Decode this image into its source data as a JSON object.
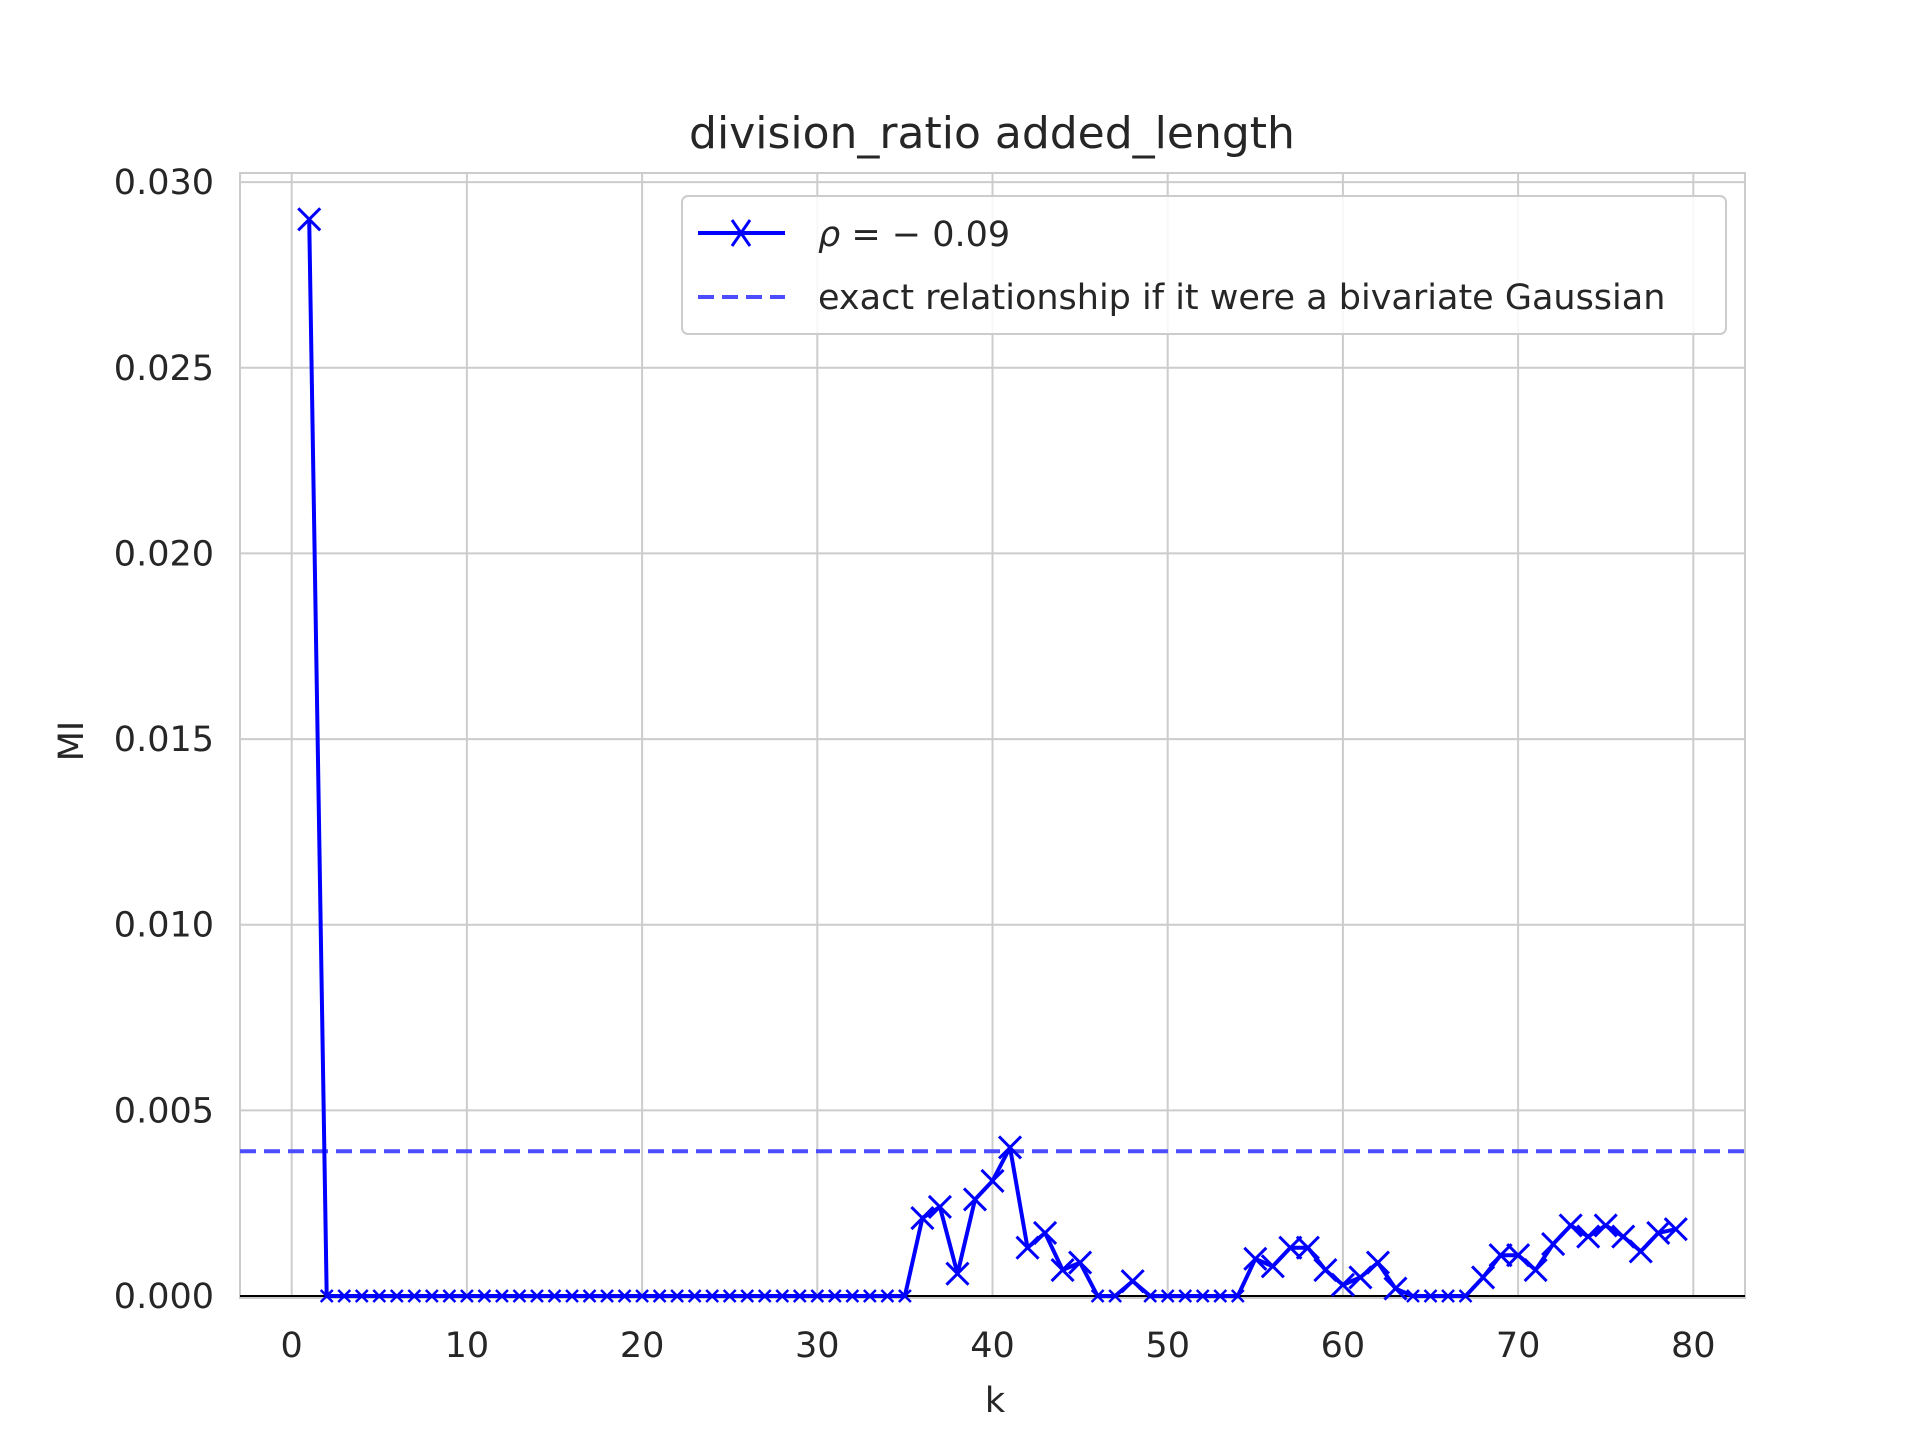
{
  "chart_data": {
    "type": "line",
    "title": "division_ratio added_length",
    "xlabel": "k",
    "ylabel": "MI",
    "xlim": [
      -2.95,
      82.95
    ],
    "ylim": [
      0.0,
      0.0303
    ],
    "xticks": [
      0,
      10,
      20,
      30,
      40,
      50,
      60,
      70,
      80
    ],
    "xtick_labels": [
      "0",
      "10",
      "20",
      "30",
      "40",
      "50",
      "60",
      "70",
      "80"
    ],
    "yticks": [
      0.0,
      0.005,
      0.01,
      0.015,
      0.02,
      0.025,
      0.03
    ],
    "ytick_labels": [
      "0.000",
      "0.005",
      "0.010",
      "0.015",
      "0.020",
      "0.025",
      "0.030"
    ],
    "grid": true,
    "legend_position": "upper right",
    "series": [
      {
        "name": "ρ = − 0.09",
        "name_parts": [
          "ρ",
          " = ",
          "− 0.09"
        ],
        "style": "solid",
        "marker": "x",
        "color": "#0000ff",
        "x": [
          1,
          2,
          3,
          4,
          5,
          6,
          7,
          8,
          9,
          10,
          11,
          12,
          13,
          14,
          15,
          16,
          17,
          18,
          19,
          20,
          21,
          22,
          23,
          24,
          25,
          26,
          27,
          28,
          29,
          30,
          31,
          32,
          33,
          34,
          35,
          36,
          37,
          38,
          39,
          40,
          41,
          42,
          43,
          44,
          45,
          46,
          47,
          48,
          49,
          50,
          51,
          52,
          53,
          54,
          55,
          56,
          57,
          58,
          59,
          60,
          61,
          62,
          63,
          64,
          65,
          66,
          67,
          68,
          69,
          70,
          71,
          72,
          73,
          74,
          75,
          76,
          77,
          78,
          79
        ],
        "y": [
          0.029,
          0.0,
          0.0,
          0.0,
          0.0,
          0.0,
          0.0,
          0.0,
          0.0,
          0.0,
          0.0,
          0.0,
          0.0,
          0.0,
          0.0,
          0.0,
          0.0,
          0.0,
          0.0,
          0.0,
          0.0,
          0.0,
          0.0,
          0.0,
          0.0,
          0.0,
          0.0,
          0.0,
          0.0,
          0.0,
          0.0,
          0.0,
          0.0,
          0.0,
          0.0,
          0.0021,
          0.0024,
          0.0006,
          0.0026,
          0.0031,
          0.004,
          0.0013,
          0.0017,
          0.0007,
          0.0009,
          0.0,
          0.0,
          0.0004,
          0.0,
          0.0,
          0.0,
          0.0,
          0.0,
          0.0,
          0.001,
          0.0008,
          0.0013,
          0.0013,
          0.0007,
          0.0003,
          0.0005,
          0.0009,
          0.0002,
          0.0,
          0.0,
          0.0,
          0.0,
          0.0005,
          0.0011,
          0.0011,
          0.0007,
          0.0014,
          0.0019,
          0.0016,
          0.0019,
          0.0016,
          0.0012,
          0.0017,
          0.0018
        ]
      },
      {
        "name": "exact relationship if it were a bivariate Gaussian",
        "style": "dashed",
        "color": "#4d4dff",
        "y_const": 0.0039
      }
    ]
  }
}
